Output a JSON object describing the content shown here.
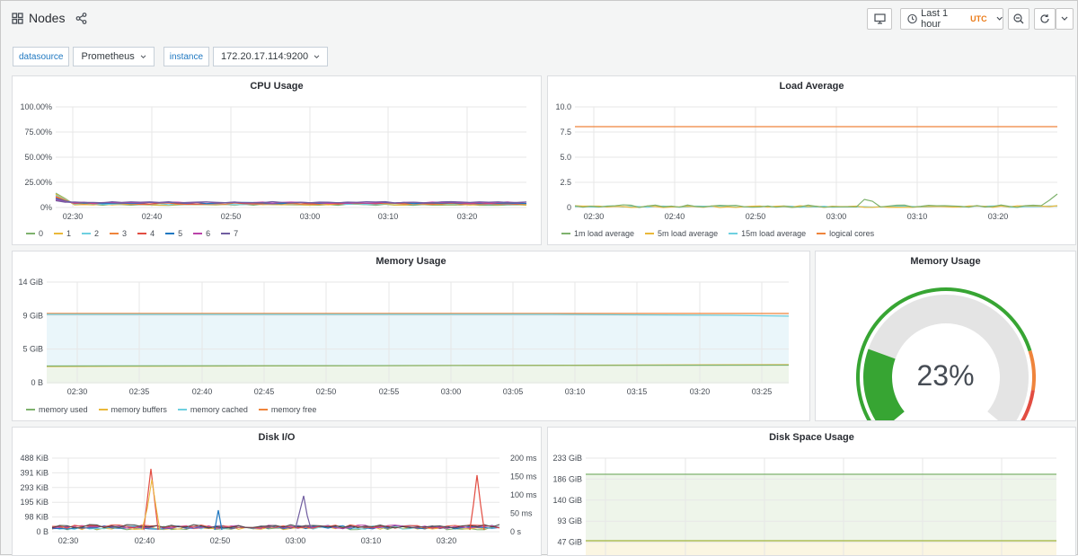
{
  "header": {
    "title": "Nodes",
    "time_range": "Last 1 hour",
    "timezone": "UTC"
  },
  "variables": [
    {
      "label": "datasource",
      "value": "Prometheus"
    },
    {
      "label": "instance",
      "value": "172.20.17.114:9200"
    }
  ],
  "colors": {
    "green": "#7eb26d",
    "yellow": "#eab839",
    "cyan": "#6ed0e0",
    "orange": "#ef843c",
    "red": "#e24d42",
    "blue": "#1f78c1",
    "pink": "#ba43a9",
    "purple": "#705da0",
    "gauge_green": "#37a533",
    "gauge_orange": "#ef843c",
    "gauge_red": "#e24d42",
    "gauge_bg": "#e4e4e4"
  },
  "panels": {
    "cpu": {
      "title": "CPU Usage",
      "yticks": [
        "100.00%",
        "75.00%",
        "50.00%",
        "25.00%",
        "0%"
      ],
      "xticks": [
        "02:30",
        "02:40",
        "02:50",
        "03:00",
        "03:10",
        "03:20"
      ],
      "legend": [
        "0",
        "1",
        "2",
        "3",
        "4",
        "5",
        "6",
        "7"
      ]
    },
    "load": {
      "title": "Load Average",
      "yticks": [
        "10.0",
        "7.5",
        "5.0",
        "2.5",
        "0"
      ],
      "xticks": [
        "02:30",
        "02:40",
        "02:50",
        "03:00",
        "03:10",
        "03:20"
      ],
      "legend": [
        "1m load average",
        "5m load average",
        "15m load average",
        "logical cores"
      ]
    },
    "memory": {
      "title": "Memory Usage",
      "yticks": [
        "14 GiB",
        "9 GiB",
        "5 GiB",
        "0 B"
      ],
      "xticks": [
        "02:30",
        "02:35",
        "02:40",
        "02:45",
        "02:50",
        "02:55",
        "03:00",
        "03:05",
        "03:10",
        "03:15",
        "03:20",
        "03:25"
      ],
      "legend": [
        "memory used",
        "memory buffers",
        "memory cached",
        "memory free"
      ]
    },
    "gauge": {
      "title": "Memory Usage",
      "value": "23%",
      "fraction": 0.23
    },
    "disk_io": {
      "title": "Disk I/O",
      "yticks_left": [
        "488 KiB",
        "391 KiB",
        "293 KiB",
        "195 KiB",
        "98 KiB",
        "0 B"
      ],
      "yticks_right": [
        "200 ms",
        "150 ms",
        "100 ms",
        "50 ms",
        "0 s"
      ],
      "xticks": [
        "02:30",
        "02:40",
        "02:50",
        "03:00",
        "03:10",
        "03:20"
      ]
    },
    "disk_space": {
      "title": "Disk Space Usage",
      "yticks": [
        "233 GiB",
        "186 GiB",
        "140 GiB",
        "93 GiB",
        "47 GiB"
      ]
    }
  }
}
